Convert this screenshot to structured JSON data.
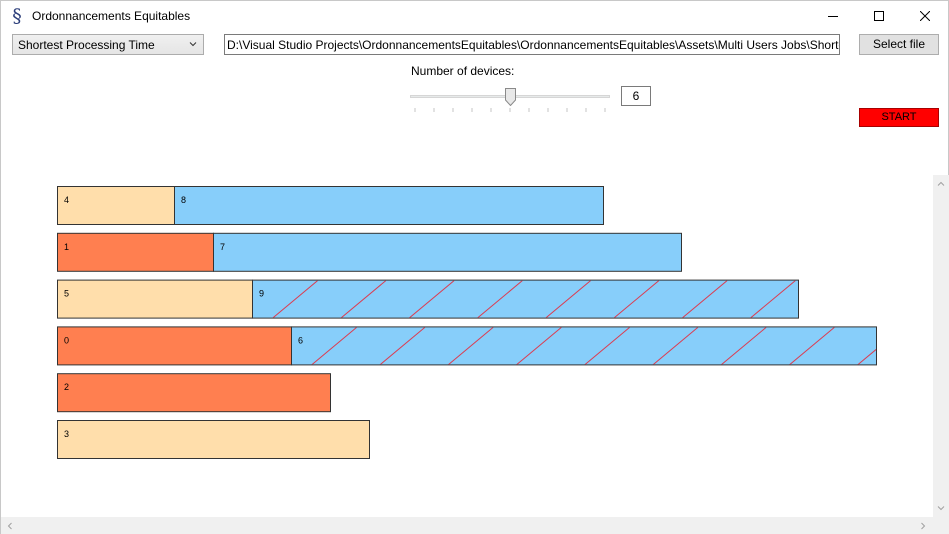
{
  "window": {
    "title": "Ordonnancements Equitables",
    "icon": "app-s-icon"
  },
  "toolbar": {
    "algorithm_selected": "Shortest Processing Time",
    "file_path": "D:\\Visual Studio Projects\\OrdonnancementsEquitables\\OrdonnancementsEquitables\\Assets\\Multi Users Jobs\\Shortest",
    "select_file_label": "Select file",
    "devices_label": "Number of devices:",
    "devices_value": "6",
    "devices_slider": {
      "min": 1,
      "max": 11,
      "value": 6
    },
    "start_label": "START",
    "start_color": "#ff0000"
  },
  "gantt": {
    "colors": {
      "light_orange": "#ffdeab",
      "dark_orange": "#ff7f50",
      "blue": "#87cefa",
      "hatch": "#dc3c50"
    },
    "rows": [
      {
        "jobs": [
          {
            "label": "4",
            "start": 0,
            "end": 3,
            "color": "light_orange",
            "hatched": false
          },
          {
            "label": "8",
            "start": 3,
            "end": 14,
            "color": "blue",
            "hatched": false
          }
        ]
      },
      {
        "jobs": [
          {
            "label": "1",
            "start": 0,
            "end": 4,
            "color": "dark_orange",
            "hatched": false
          },
          {
            "label": "7",
            "start": 4,
            "end": 16,
            "color": "blue",
            "hatched": false
          }
        ]
      },
      {
        "jobs": [
          {
            "label": "5",
            "start": 0,
            "end": 5,
            "color": "light_orange",
            "hatched": false
          },
          {
            "label": "9",
            "start": 5,
            "end": 19,
            "color": "blue",
            "hatched": true
          }
        ]
      },
      {
        "jobs": [
          {
            "label": "0",
            "start": 0,
            "end": 6,
            "color": "dark_orange",
            "hatched": false
          },
          {
            "label": "6",
            "start": 6,
            "end": 21,
            "color": "blue",
            "hatched": true
          }
        ]
      },
      {
        "jobs": [
          {
            "label": "2",
            "start": 0,
            "end": 7,
            "color": "dark_orange",
            "hatched": false
          }
        ]
      },
      {
        "jobs": [
          {
            "label": "3",
            "start": 0,
            "end": 8,
            "color": "light_orange",
            "hatched": false
          }
        ]
      }
    ]
  }
}
